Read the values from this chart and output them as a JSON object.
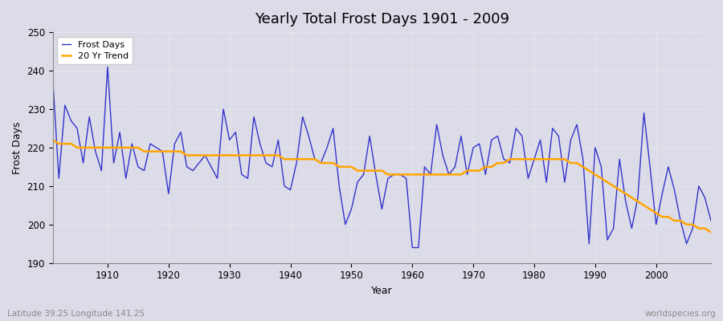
{
  "title": "Yearly Total Frost Days 1901 - 2009",
  "xlabel": "Year",
  "ylabel": "Frost Days",
  "subtitle_left": "Latitude 39.25 Longitude 141.25",
  "subtitle_right": "worldspecies.org",
  "legend_labels": [
    "Frost Days",
    "20 Yr Trend"
  ],
  "line_color": "#3333cc",
  "trend_color": "#ffa500",
  "bg_color": "#dcdce8",
  "ylim": [
    190,
    250
  ],
  "xlim": [
    1901,
    2009
  ],
  "years": [
    1901,
    1902,
    1903,
    1904,
    1905,
    1906,
    1907,
    1908,
    1909,
    1910,
    1911,
    1912,
    1913,
    1914,
    1915,
    1916,
    1917,
    1918,
    1919,
    1920,
    1921,
    1922,
    1923,
    1924,
    1925,
    1926,
    1927,
    1928,
    1929,
    1930,
    1931,
    1932,
    1933,
    1934,
    1935,
    1936,
    1937,
    1938,
    1939,
    1940,
    1941,
    1942,
    1943,
    1944,
    1945,
    1946,
    1947,
    1948,
    1949,
    1950,
    1951,
    1952,
    1953,
    1954,
    1955,
    1956,
    1957,
    1958,
    1959,
    1960,
    1961,
    1962,
    1963,
    1964,
    1965,
    1966,
    1967,
    1968,
    1969,
    1970,
    1971,
    1972,
    1973,
    1974,
    1975,
    1976,
    1977,
    1978,
    1979,
    1980,
    1981,
    1982,
    1983,
    1984,
    1985,
    1986,
    1987,
    1988,
    1989,
    1990,
    1991,
    1992,
    1993,
    1994,
    1995,
    1996,
    1997,
    1998,
    1999,
    2000,
    2001,
    2002,
    2003,
    2004,
    2005,
    2006,
    2007,
    2008,
    2009
  ],
  "frost_days": [
    238,
    212,
    231,
    227,
    225,
    216,
    228,
    219,
    214,
    241,
    216,
    224,
    212,
    221,
    215,
    214,
    221,
    220,
    219,
    208,
    221,
    224,
    215,
    214,
    216,
    218,
    215,
    212,
    230,
    222,
    224,
    213,
    212,
    228,
    221,
    216,
    215,
    222,
    210,
    209,
    216,
    228,
    223,
    217,
    216,
    220,
    225,
    210,
    200,
    204,
    211,
    213,
    223,
    213,
    204,
    212,
    213,
    213,
    212,
    194,
    194,
    215,
    213,
    226,
    218,
    213,
    215,
    223,
    213,
    220,
    221,
    213,
    222,
    223,
    217,
    216,
    225,
    223,
    212,
    217,
    222,
    211,
    225,
    223,
    211,
    222,
    226,
    217,
    195,
    220,
    215,
    196,
    199,
    217,
    206,
    199,
    207,
    229,
    215,
    200,
    208,
    215,
    209,
    201,
    195,
    199,
    210,
    207,
    201
  ],
  "trend_values": [
    222,
    221,
    221,
    221,
    220,
    220,
    220,
    220,
    220,
    220,
    220,
    220,
    220,
    220,
    220,
    219,
    219,
    219,
    219,
    219,
    219,
    219,
    218,
    218,
    218,
    218,
    218,
    218,
    218,
    218,
    218,
    218,
    218,
    218,
    218,
    218,
    218,
    218,
    217,
    217,
    217,
    217,
    217,
    217,
    216,
    216,
    216,
    215,
    215,
    215,
    214,
    214,
    214,
    214,
    214,
    213,
    213,
    213,
    213,
    213,
    213,
    213,
    213,
    213,
    213,
    213,
    213,
    213,
    214,
    214,
    214,
    215,
    215,
    216,
    216,
    217,
    217,
    217,
    217,
    217,
    217,
    217,
    217,
    217,
    217,
    216,
    216,
    215,
    214,
    213,
    212,
    211,
    210,
    209,
    208,
    207,
    206,
    205,
    204,
    203,
    202,
    202,
    201,
    201,
    200,
    200,
    199,
    199,
    198
  ]
}
